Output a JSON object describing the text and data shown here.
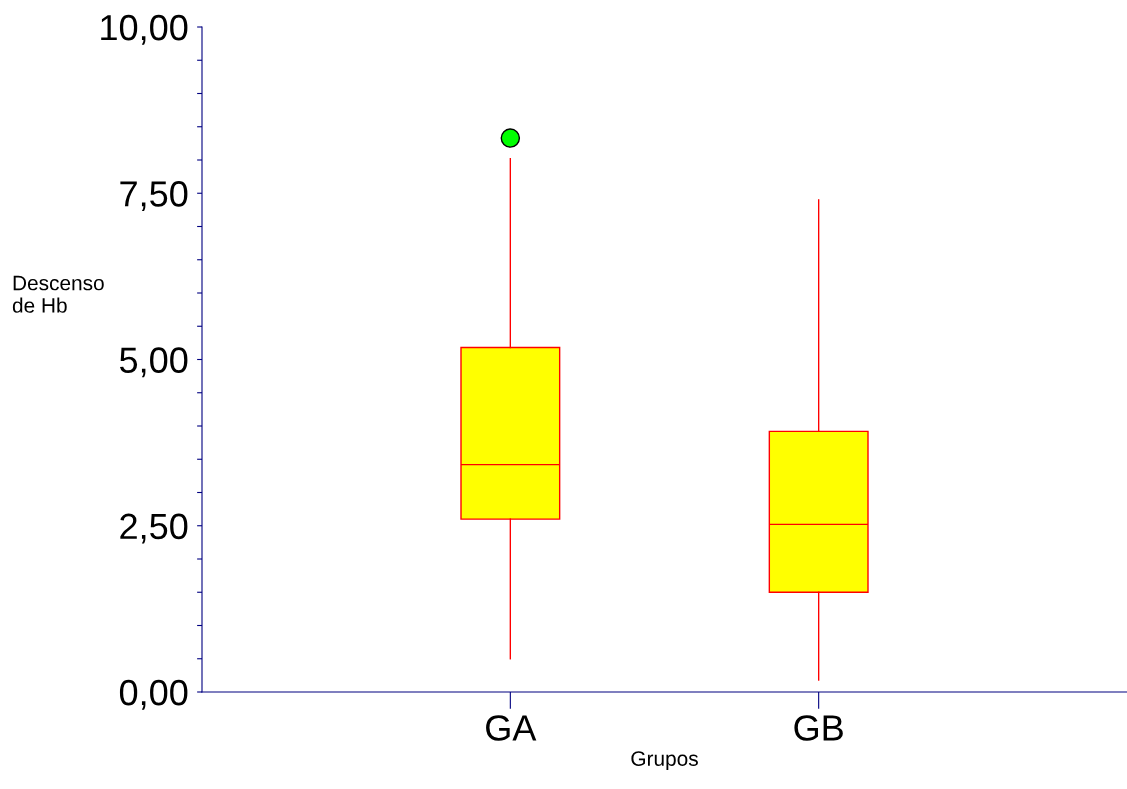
{
  "chart_data": {
    "type": "box",
    "xlabel": "Grupos",
    "ylabel": "Descenso\nde Hb",
    "categories": [
      "GA",
      "GB"
    ],
    "series": [
      {
        "color": "#ffff00",
        "boxes": [
          {
            "low": 0.5,
            "q1": 2.6,
            "median": 3.42,
            "q3": 5.18,
            "high": 8.02
          },
          {
            "low": 0.18,
            "q1": 1.5,
            "median": 2.52,
            "q3": 3.92,
            "high": 7.4
          }
        ]
      },
      {
        "type": "scatter",
        "x": [
          "GA"
        ],
        "values": [
          8.33
        ],
        "color": "#00ff00",
        "marker": "circle"
      }
    ],
    "ylim": [
      0,
      10
    ],
    "yticks": [
      {
        "value": 0,
        "label": "0,00"
      },
      {
        "value": 0.5,
        "label": null
      },
      {
        "value": 1,
        "label": null
      },
      {
        "value": 1.5,
        "label": null
      },
      {
        "value": 2,
        "label": null
      },
      {
        "value": 2.5,
        "label": "2,50"
      },
      {
        "value": 3,
        "label": null
      },
      {
        "value": 3.5,
        "label": null
      },
      {
        "value": 4,
        "label": null
      },
      {
        "value": 4.5,
        "label": null
      },
      {
        "value": 5,
        "label": "5,00"
      },
      {
        "value": 5.5,
        "label": null
      },
      {
        "value": 6,
        "label": null
      },
      {
        "value": 6.5,
        "label": null
      },
      {
        "value": 7,
        "label": null
      },
      {
        "value": 7.5,
        "label": "7,50"
      },
      {
        "value": 8,
        "label": null
      },
      {
        "value": 8.5,
        "label": null
      },
      {
        "value": 9,
        "label": null
      },
      {
        "value": 9.5,
        "label": null
      },
      {
        "value": 10,
        "label": "10,00"
      }
    ],
    "grid": false
  }
}
